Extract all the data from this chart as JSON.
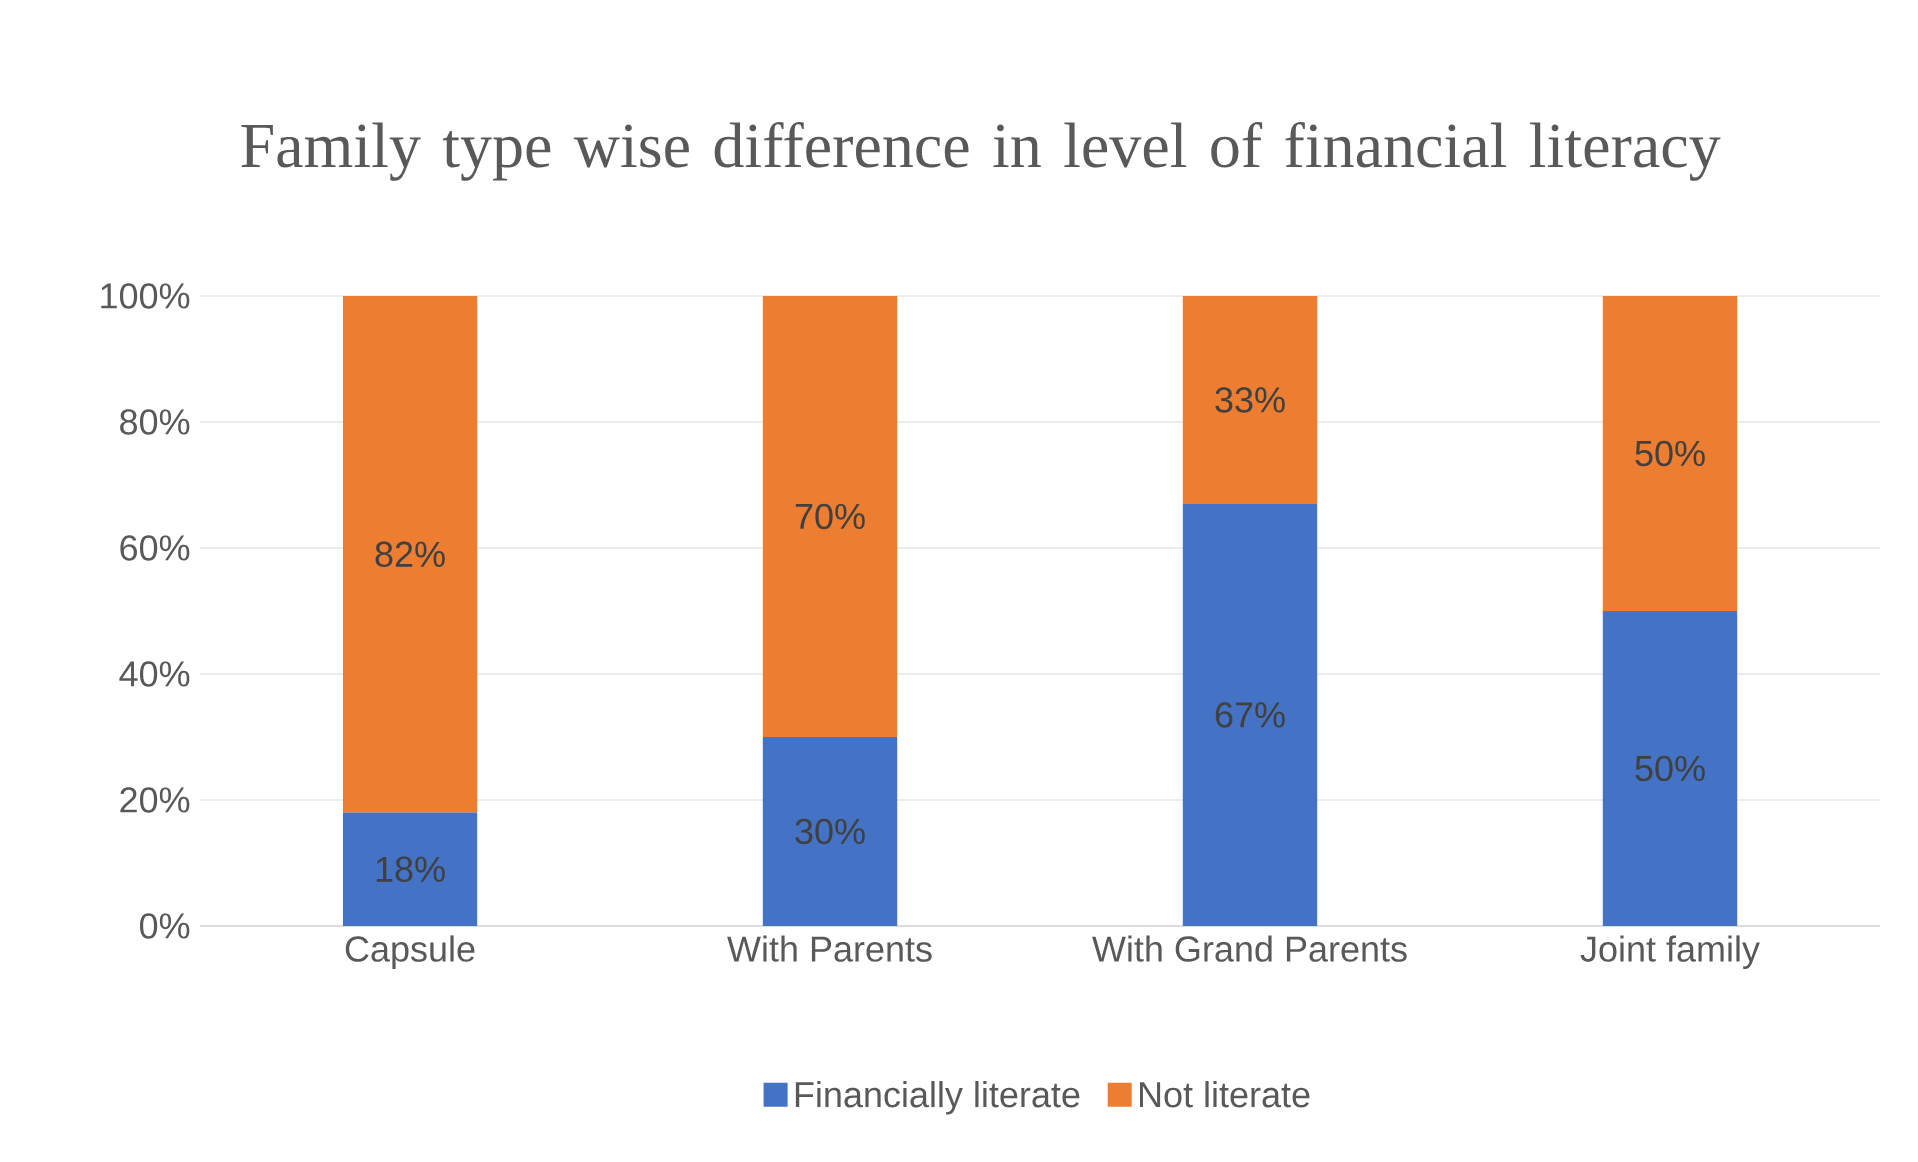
{
  "chart_data": {
    "type": "bar",
    "title": "Family type wise difference in level of financial literacy",
    "categories": [
      "Capsule",
      "With Parents",
      "With Grand Parents",
      "Joint family"
    ],
    "series": [
      {
        "name": "Financially literate",
        "color": "#4472c4",
        "values": [
          18,
          30,
          67,
          50
        ],
        "value_labels": [
          "18%",
          "30%",
          "67%",
          "50%"
        ]
      },
      {
        "name": "Not literate",
        "color": "#ed7d31",
        "values": [
          82,
          70,
          33,
          50
        ],
        "value_labels": [
          "82%",
          "70%",
          "33%",
          "50%"
        ]
      }
    ],
    "stacked": true,
    "ylim": [
      0,
      100
    ],
    "yticks": [
      {
        "value": 0,
        "label": "0%"
      },
      {
        "value": 20,
        "label": "20%"
      },
      {
        "value": 40,
        "label": "40%"
      },
      {
        "value": 60,
        "label": "60%"
      },
      {
        "value": 80,
        "label": "80%"
      },
      {
        "value": 100,
        "label": "100%"
      }
    ],
    "grid": "y",
    "legend": "bottom"
  }
}
